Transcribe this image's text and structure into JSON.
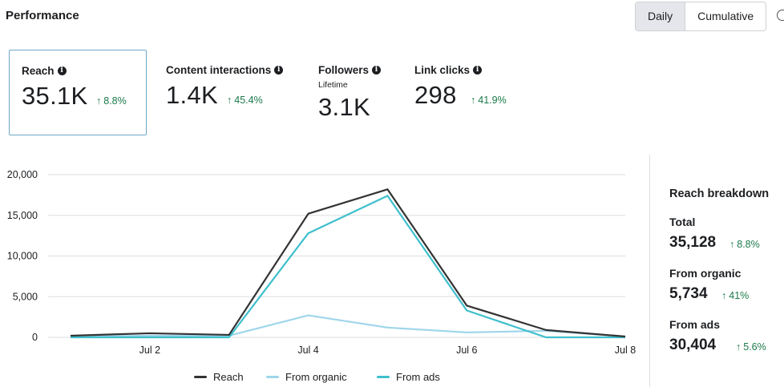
{
  "header": {
    "title": "Performance",
    "toggle": {
      "options": [
        "Daily",
        "Cumulative"
      ],
      "selected": "Daily"
    }
  },
  "metrics": [
    {
      "label": "Reach",
      "value": "35.1K",
      "delta": "8.8%",
      "selected": true
    },
    {
      "label": "Content interactions",
      "value": "1.4K",
      "delta": "45.4%"
    },
    {
      "label": "Followers",
      "sublabel": "Lifetime",
      "value": "3.1K"
    },
    {
      "label": "Link clicks",
      "value": "298",
      "delta": "41.9%"
    }
  ],
  "chart_data": {
    "type": "line",
    "x": [
      "Jul 1",
      "Jul 2",
      "Jul 3",
      "Jul 4",
      "Jul 5",
      "Jul 6",
      "Jul 7",
      "Jul 8"
    ],
    "x_tick_labels": [
      "Jul 2",
      "Jul 4",
      "Jul 6",
      "Jul 8"
    ],
    "y_ticks": [
      "0",
      "5,000",
      "10,000",
      "15,000",
      "20,000"
    ],
    "ylim": [
      0,
      20000
    ],
    "grid": true,
    "legend_position": "bottom",
    "series": [
      {
        "name": "Reach",
        "color": "#333333",
        "values": [
          200,
          500,
          300,
          15200,
          18200,
          3900,
          900,
          100
        ]
      },
      {
        "name": "From organic",
        "color": "#9fd6ea",
        "values": [
          100,
          200,
          200,
          2700,
          1200,
          600,
          800,
          100
        ]
      },
      {
        "name": "From ads",
        "color": "#3ebfcc",
        "values": [
          0,
          0,
          0,
          12800,
          17400,
          3300,
          0,
          0
        ]
      }
    ]
  },
  "breakdown": {
    "title": "Reach breakdown",
    "items": [
      {
        "label": "Total",
        "value": "35,128",
        "delta": "8.8%"
      },
      {
        "label": "From organic",
        "value": "5,734",
        "delta": "41%"
      },
      {
        "label": "From ads",
        "value": "30,404",
        "delta": "5.6%"
      }
    ]
  },
  "icons": {
    "info": "info-icon",
    "up_arrow": "arrow-up-icon"
  },
  "colors": {
    "positive": "#1b7a4a",
    "selected_border": "#6fa8c8"
  }
}
